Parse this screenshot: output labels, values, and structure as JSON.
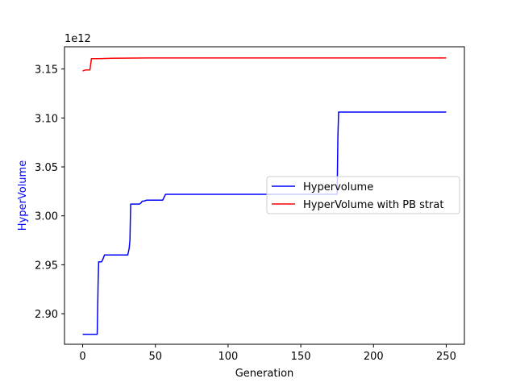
{
  "chart_data": {
    "type": "line",
    "xlabel": "Generation",
    "ylabel": "HyperVolume",
    "ylabel_color": "#0000ff",
    "y_offset_text": "1e12",
    "y_scale": 1000000000000.0,
    "xlim": [
      -12.5,
      262.5
    ],
    "ylim": [
      2.8688,
      3.1727
    ],
    "x_ticks": [
      0,
      50,
      100,
      150,
      200,
      250
    ],
    "y_ticks": [
      2.9,
      2.95,
      3.0,
      3.05,
      3.1,
      3.15
    ],
    "y_tick_labels": [
      "2.90",
      "2.95",
      "3.00",
      "3.05",
      "3.10",
      "3.15"
    ],
    "grid": false,
    "legend_position": "center-right",
    "series": [
      {
        "name": "Hypervolume",
        "color": "#0000ff",
        "x": [
          0,
          10,
          10.6,
          11,
          13,
          14,
          15,
          25,
          27,
          31,
          32,
          32.5,
          33,
          34,
          39,
          40,
          41,
          42,
          44,
          55,
          56,
          57,
          60,
          100,
          175,
          175.5,
          176,
          250
        ],
        "y": [
          2.879,
          2.879,
          2.93,
          2.953,
          2.953,
          2.956,
          2.96,
          2.96,
          2.96,
          2.96,
          2.967,
          2.975,
          3.012,
          3.012,
          3.012,
          3.013,
          3.015,
          3.015,
          3.016,
          3.016,
          3.019,
          3.022,
          3.022,
          3.022,
          3.022,
          3.08,
          3.106,
          3.106
        ]
      },
      {
        "name": "HyperVolume with PB strat",
        "color": "#ff0000",
        "x": [
          0,
          2,
          5,
          6,
          10,
          20,
          45,
          250
        ],
        "y": [
          3.148,
          3.149,
          3.149,
          3.1605,
          3.1605,
          3.161,
          3.1613,
          3.1613
        ]
      }
    ]
  }
}
